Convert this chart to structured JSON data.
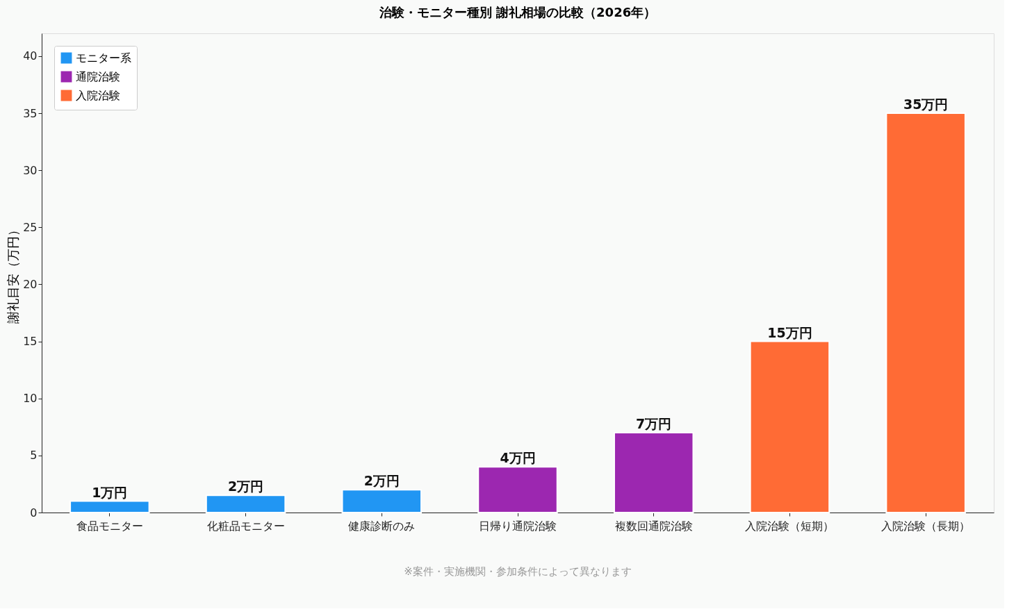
{
  "chart_data": {
    "type": "bar",
    "title": "治験・モニター種別 謝礼相場の比較（2026年）",
    "ylabel": "謝礼目安（万円）",
    "categories": [
      "食品モニター",
      "化粧品モニター",
      "健康診断のみ",
      "日帰り通院治験",
      "複数回通院治験",
      "入院治験（短期）",
      "入院治験（長期）"
    ],
    "series": [
      {
        "name": "モニター系",
        "color": "#2196f3",
        "values": [
          1,
          1.5,
          2,
          null,
          null,
          null,
          null
        ],
        "value_labels": [
          "1万円",
          "2万円",
          "2万円",
          null,
          null,
          null,
          null
        ]
      },
      {
        "name": "通院治験",
        "color": "#9c27b0",
        "values": [
          null,
          null,
          null,
          4,
          7,
          null,
          null
        ],
        "value_labels": [
          null,
          null,
          null,
          "4万円",
          "7万円",
          null,
          null
        ]
      },
      {
        "name": "入院治験",
        "color": "#ff6b35",
        "values": [
          null,
          null,
          null,
          null,
          null,
          15,
          35
        ],
        "value_labels": [
          null,
          null,
          null,
          null,
          null,
          "15万円",
          "35万円"
        ]
      }
    ],
    "ylim": [
      0,
      42
    ],
    "yticks": [
      0,
      5,
      10,
      15,
      20,
      25,
      30,
      35,
      40
    ],
    "grid": false,
    "legend": "top left",
    "annotations": [
      "※案件・実施機関・参加条件によって異なります"
    ]
  }
}
